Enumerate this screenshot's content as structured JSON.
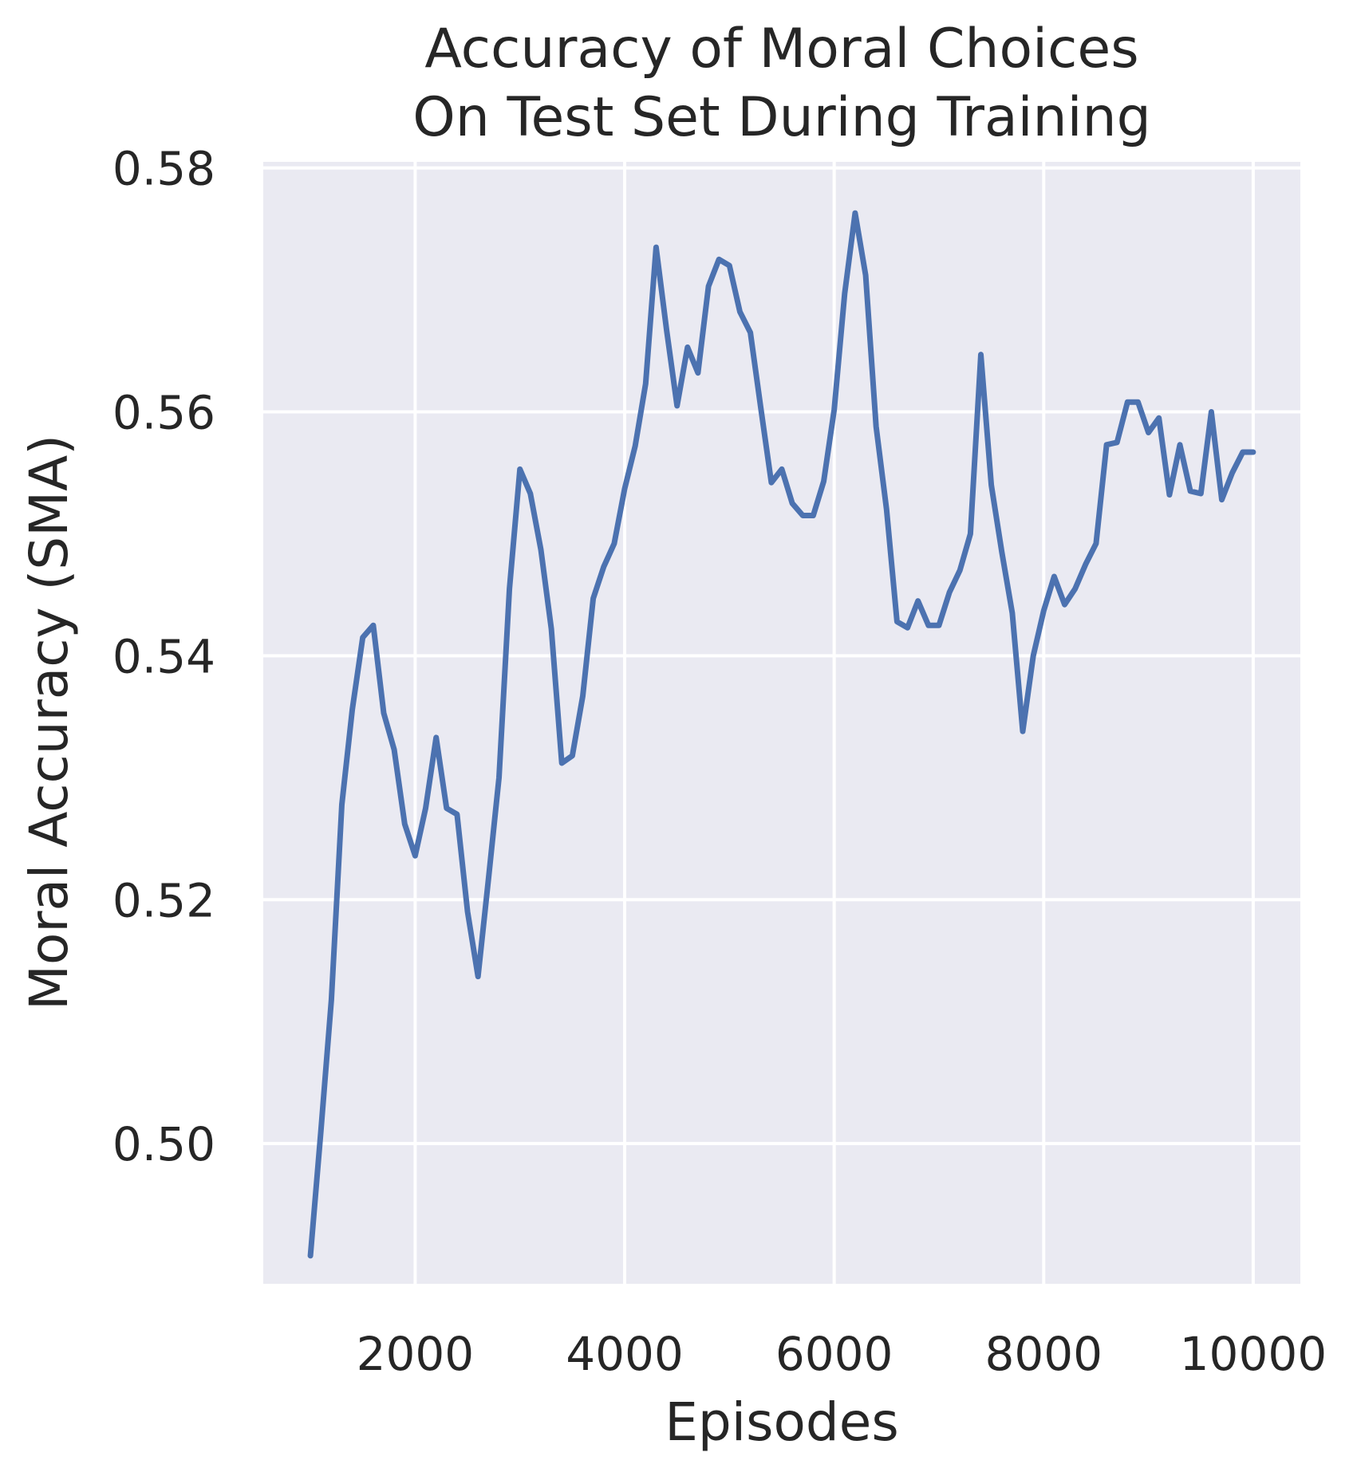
{
  "chart_data": {
    "type": "line",
    "title_lines": [
      "Accuracy of Moral Choices",
      "On Test Set During Training"
    ],
    "xlabel": "Episodes",
    "ylabel": "Moral Accuracy (SMA)",
    "xlim": [
      550,
      10450
    ],
    "ylim": [
      0.4885,
      0.5805
    ],
    "xticks": [
      2000,
      4000,
      6000,
      8000,
      10000
    ],
    "yticks": [
      0.5,
      0.52,
      0.54,
      0.56,
      0.58
    ],
    "ytick_labels": [
      "0.50",
      "0.52",
      "0.54",
      "0.56",
      "0.58"
    ],
    "grid": true,
    "legend": false,
    "colors": {
      "line": "#4c72b0",
      "plot_background": "#eaeaf2",
      "grid": "#ffffff",
      "text": "#262626"
    },
    "series": [
      {
        "x": [
          1000,
          1100,
          1200,
          1300,
          1400,
          1500,
          1600,
          1700,
          1800,
          1900,
          2000,
          2100,
          2200,
          2300,
          2400,
          2500,
          2600,
          2700,
          2800,
          2900,
          3000,
          3100,
          3200,
          3300,
          3400,
          3500,
          3600,
          3700,
          3800,
          3900,
          4000,
          4100,
          4200,
          4300,
          4400,
          4500,
          4600,
          4700,
          4800,
          4900,
          5000,
          5100,
          5200,
          5300,
          5400,
          5500,
          5600,
          5700,
          5800,
          5900,
          6000,
          6100,
          6200,
          6300,
          6400,
          6500,
          6600,
          6700,
          6800,
          6900,
          7000,
          7100,
          7200,
          7300,
          7400,
          7500,
          7600,
          7700,
          7800,
          7900,
          8000,
          8100,
          8200,
          8300,
          8400,
          8500,
          8600,
          8700,
          8800,
          8900,
          9000,
          9100,
          9200,
          9300,
          9400,
          9500,
          9600,
          9700,
          9800,
          9900,
          10000
        ],
        "values": [
          0.4908,
          0.501,
          0.5118,
          0.5278,
          0.5356,
          0.5415,
          0.5425,
          0.5353,
          0.5323,
          0.5262,
          0.5236,
          0.5275,
          0.5333,
          0.5275,
          0.527,
          0.519,
          0.5137,
          0.5217,
          0.53,
          0.5455,
          0.5553,
          0.5533,
          0.5487,
          0.5422,
          0.5312,
          0.5318,
          0.5367,
          0.5447,
          0.5473,
          0.5492,
          0.5537,
          0.5572,
          0.5623,
          0.5735,
          0.5667,
          0.5605,
          0.5653,
          0.5632,
          0.5703,
          0.5725,
          0.572,
          0.5682,
          0.5665,
          0.5603,
          0.5542,
          0.5553,
          0.5525,
          0.5515,
          0.5515,
          0.5543,
          0.5602,
          0.5697,
          0.5763,
          0.5712,
          0.5588,
          0.552,
          0.5428,
          0.5423,
          0.5445,
          0.5425,
          0.5425,
          0.5452,
          0.547,
          0.55,
          0.5647,
          0.554,
          0.5485,
          0.5435,
          0.5338,
          0.54,
          0.5437,
          0.5465,
          0.5442,
          0.5455,
          0.5475,
          0.5492,
          0.5573,
          0.5575,
          0.5608,
          0.5608,
          0.5583,
          0.5595,
          0.5532,
          0.5573,
          0.5535,
          0.5533,
          0.56,
          0.5528,
          0.555,
          0.5567,
          0.5567
        ]
      }
    ]
  }
}
